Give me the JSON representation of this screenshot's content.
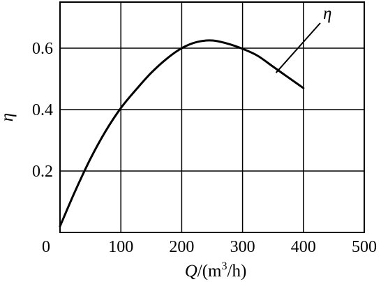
{
  "chart_data": {
    "type": "line",
    "xlabel": {
      "symbol": "Q",
      "unit": "/(m",
      "exp": "3",
      "unit_end": "/h)"
    },
    "ylabel": "η",
    "xlim": [
      0,
      500
    ],
    "ylim": [
      0,
      0.75
    ],
    "grid": true,
    "x_ticks": [
      {
        "value": 0,
        "label": "0"
      },
      {
        "value": 100,
        "label": "100"
      },
      {
        "value": 200,
        "label": "200"
      },
      {
        "value": 300,
        "label": "300"
      },
      {
        "value": 400,
        "label": "400"
      },
      {
        "value": 500,
        "label": "500"
      }
    ],
    "y_ticks": [
      {
        "value": 0.2,
        "label": "0.2"
      },
      {
        "value": 0.4,
        "label": "0.4"
      },
      {
        "value": 0.6,
        "label": "0.6"
      }
    ],
    "series": [
      {
        "name": "η",
        "x": [
          0,
          25,
          50,
          75,
          100,
          125,
          150,
          175,
          200,
          225,
          250,
          275,
          300,
          325,
          350,
          375,
          400
        ],
        "y": [
          0.02,
          0.135,
          0.24,
          0.33,
          0.405,
          0.465,
          0.52,
          0.565,
          0.6,
          0.62,
          0.625,
          0.615,
          0.598,
          0.575,
          0.54,
          0.505,
          0.47
        ]
      }
    ],
    "annotations": [
      {
        "text": "η",
        "at_x": 355,
        "at_y": 0.52,
        "label_x": 430,
        "label_y": 0.7
      }
    ]
  }
}
